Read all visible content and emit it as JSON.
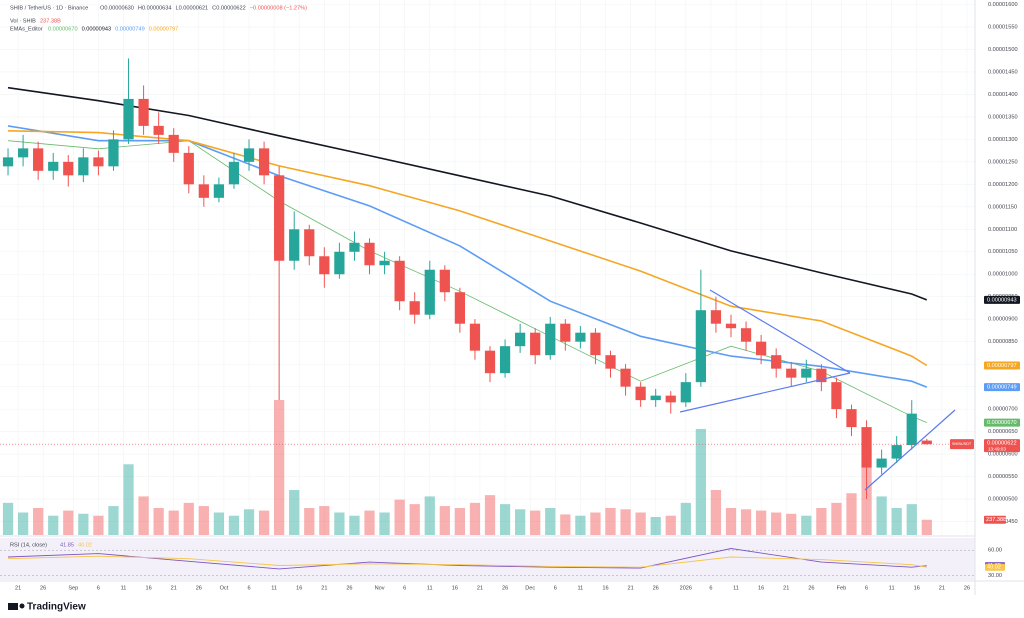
{
  "brand": "TradingView",
  "chart_data": {
    "type": "candlestick",
    "title": "SHIB / TetherUS · 1D · Binance",
    "ohlc_legend": [
      "O0.00000630",
      "H0.00000634",
      "L0.00000621",
      "C0.00000622",
      "−0.00000008 (−1.27%)"
    ],
    "up_color": "#26a69a",
    "down_color": "#ef5350",
    "x": [
      0,
      3,
      6,
      9,
      12,
      15,
      18,
      21,
      24,
      27,
      30,
      33,
      36,
      39,
      42,
      45,
      48,
      51,
      54,
      57,
      60,
      63,
      66,
      69,
      72,
      75,
      78,
      81,
      84,
      87,
      90,
      93,
      96,
      99,
      102,
      105,
      108,
      111,
      114,
      117,
      120,
      123,
      126,
      129,
      132,
      135,
      138,
      141,
      144,
      147,
      150,
      153,
      156,
      159,
      162,
      165,
      168,
      171,
      174,
      177,
      180,
      183
    ],
    "candles": [
      [
        1.24e-05,
        1.28e-05,
        1.22e-05,
        1.26e-05
      ],
      [
        1.26e-05,
        1.31e-05,
        1.24e-05,
        1.28e-05
      ],
      [
        1.28e-05,
        1.295e-05,
        1.21e-05,
        1.23e-05
      ],
      [
        1.23e-05,
        1.27e-05,
        1.21e-05,
        1.25e-05
      ],
      [
        1.25e-05,
        1.265e-05,
        1.195e-05,
        1.22e-05
      ],
      [
        1.22e-05,
        1.28e-05,
        1.205e-05,
        1.26e-05
      ],
      [
        1.26e-05,
        1.275e-05,
        1.22e-05,
        1.24e-05
      ],
      [
        1.24e-05,
        1.32e-05,
        1.23e-05,
        1.3e-05
      ],
      [
        1.3e-05,
        1.48e-05,
        1.29e-05,
        1.39e-05
      ],
      [
        1.39e-05,
        1.42e-05,
        1.31e-05,
        1.33e-05
      ],
      [
        1.33e-05,
        1.36e-05,
        1.29e-05,
        1.31e-05
      ],
      [
        1.31e-05,
        1.325e-05,
        1.25e-05,
        1.27e-05
      ],
      [
        1.27e-05,
        1.285e-05,
        1.18e-05,
        1.2e-05
      ],
      [
        1.2e-05,
        1.22e-05,
        1.15e-05,
        1.17e-05
      ],
      [
        1.17e-05,
        1.215e-05,
        1.16e-05,
        1.2e-05
      ],
      [
        1.2e-05,
        1.27e-05,
        1.19e-05,
        1.25e-05
      ],
      [
        1.25e-05,
        1.3e-05,
        1.23e-05,
        1.28e-05
      ],
      [
        1.28e-05,
        1.295e-05,
        1.2e-05,
        1.22e-05
      ],
      [
        1.22e-05,
        1.24e-05,
        7.2e-06,
        1.03e-05
      ],
      [
        1.03e-05,
        1.14e-05,
        1.01e-05,
        1.1e-05
      ],
      [
        1.1e-05,
        1.11e-05,
        1.02e-05,
        1.04e-05
      ],
      [
        1.04e-05,
        1.06e-05,
        9.7e-06,
        1e-05
      ],
      [
        1e-05,
        1.07e-05,
        9.9e-06,
        1.05e-05
      ],
      [
        1.05e-05,
        1.095e-05,
        1.03e-05,
        1.07e-05
      ],
      [
        1.07e-05,
        1.08e-05,
        1e-05,
        1.02e-05
      ],
      [
        1.02e-05,
        1.05e-05,
        1e-05,
        1.03e-05
      ],
      [
        1.03e-05,
        1.04e-05,
        9.2e-06,
        9.4e-06
      ],
      [
        9.4e-06,
        9.6e-06,
        8.9e-06,
        9.1e-06
      ],
      [
        9.1e-06,
        1.03e-05,
        9e-06,
        1.01e-05
      ],
      [
        1.01e-05,
        1.02e-05,
        9.4e-06,
        9.6e-06
      ],
      [
        9.6e-06,
        9.7e-06,
        8.7e-06,
        8.9e-06
      ],
      [
        8.9e-06,
        9e-06,
        8.1e-06,
        8.3e-06
      ],
      [
        8.3e-06,
        8.4e-06,
        7.6e-06,
        7.8e-06
      ],
      [
        7.8e-06,
        8.55e-06,
        7.7e-06,
        8.4e-06
      ],
      [
        8.4e-06,
        8.9e-06,
        8.25e-06,
        8.7e-06
      ],
      [
        8.7e-06,
        8.8e-06,
        8e-06,
        8.2e-06
      ],
      [
        8.2e-06,
        9.05e-06,
        8.1e-06,
        8.9e-06
      ],
      [
        8.9e-06,
        9e-06,
        8.3e-06,
        8.5e-06
      ],
      [
        8.5e-06,
        8.85e-06,
        8.35e-06,
        8.7e-06
      ],
      [
        8.7e-06,
        8.8e-06,
        8e-06,
        8.2e-06
      ],
      [
        8.2e-06,
        8.3e-06,
        7.7e-06,
        7.9e-06
      ],
      [
        7.9e-06,
        8e-06,
        7.3e-06,
        7.5e-06
      ],
      [
        7.5e-06,
        7.6e-06,
        7.05e-06,
        7.2e-06
      ],
      [
        7.2e-06,
        7.45e-06,
        7.05e-06,
        7.3e-06
      ],
      [
        7.3e-06,
        7.4e-06,
        6.9e-06,
        7.15e-06
      ],
      [
        7.15e-06,
        7.8e-06,
        7.05e-06,
        7.6e-06
      ],
      [
        7.6e-06,
        1.01e-05,
        7.5e-06,
        9.2e-06
      ],
      [
        9.2e-06,
        9.5e-06,
        8.7e-06,
        8.9e-06
      ],
      [
        8.9e-06,
        9.1e-06,
        8.6e-06,
        8.8e-06
      ],
      [
        8.8e-06,
        8.95e-06,
        8.3e-06,
        8.5e-06
      ],
      [
        8.5e-06,
        8.65e-06,
        8e-06,
        8.2e-06
      ],
      [
        8.2e-06,
        8.35e-06,
        7.7e-06,
        7.9e-06
      ],
      [
        7.9e-06,
        8.05e-06,
        7.5e-06,
        7.7e-06
      ],
      [
        7.7e-06,
        8.1e-06,
        7.6e-06,
        7.9e-06
      ],
      [
        7.9e-06,
        8e-06,
        7.4e-06,
        7.6e-06
      ],
      [
        7.6e-06,
        7.7e-06,
        6.8e-06,
        7e-06
      ],
      [
        7e-06,
        7.1e-06,
        6.4e-06,
        6.6e-06
      ],
      [
        6.6e-06,
        6.75e-06,
        5e-06,
        5.7e-06
      ],
      [
        5.7e-06,
        6.1e-06,
        5.55e-06,
        5.9e-06
      ],
      [
        5.9e-06,
        6.4e-06,
        5.8e-06,
        6.2e-06
      ],
      [
        6.2e-06,
        7.2e-06,
        6.1e-06,
        6.9e-06
      ],
      [
        6.3e-06,
        6.34e-06,
        6.21e-06,
        6.22e-06
      ]
    ],
    "xlim": [
      -1.6,
      192.6
    ],
    "xticks": [
      {
        "value": 2,
        "label": "21"
      },
      {
        "value": 7,
        "label": "26"
      },
      {
        "value": 13,
        "label": "Sep"
      },
      {
        "value": 18,
        "label": "6"
      },
      {
        "value": 23,
        "label": "11"
      },
      {
        "value": 28,
        "label": "16"
      },
      {
        "value": 33,
        "label": "21"
      },
      {
        "value": 38,
        "label": "26"
      },
      {
        "value": 43,
        "label": "Oct"
      },
      {
        "value": 48,
        "label": "6"
      },
      {
        "value": 53,
        "label": "11"
      },
      {
        "value": 58,
        "label": "16"
      },
      {
        "value": 63,
        "label": "21"
      },
      {
        "value": 68,
        "label": "26"
      },
      {
        "value": 74,
        "label": "Nov"
      },
      {
        "value": 79,
        "label": "6"
      },
      {
        "value": 84,
        "label": "11"
      },
      {
        "value": 89,
        "label": "16"
      },
      {
        "value": 94,
        "label": "21"
      },
      {
        "value": 99,
        "label": "26"
      },
      {
        "value": 104,
        "label": "Dec"
      },
      {
        "value": 109,
        "label": "6"
      },
      {
        "value": 114,
        "label": "11"
      },
      {
        "value": 119,
        "label": "16"
      },
      {
        "value": 124,
        "label": "21"
      },
      {
        "value": 129,
        "label": "26"
      },
      {
        "value": 135,
        "label": "2026"
      },
      {
        "value": 140,
        "label": "6"
      },
      {
        "value": 145,
        "label": "11"
      },
      {
        "value": 150,
        "label": "16"
      },
      {
        "value": 155,
        "label": "21"
      },
      {
        "value": 160,
        "label": "26"
      },
      {
        "value": 166,
        "label": "Feb"
      },
      {
        "value": 171,
        "label": "6"
      },
      {
        "value": 176,
        "label": "11"
      },
      {
        "value": 181,
        "label": "16"
      },
      {
        "value": 186,
        "label": "21"
      },
      {
        "value": 191,
        "label": "26"
      }
    ],
    "ylim": [
      4.2e-06,
      1.61e-05
    ],
    "yticks": [
      {
        "value": 1.6e-05,
        "label": "0.00001600"
      },
      {
        "value": 1.55e-05,
        "label": "0.00001550"
      },
      {
        "value": 1.5e-05,
        "label": "0.00001500"
      },
      {
        "value": 1.45e-05,
        "label": "0.00001450"
      },
      {
        "value": 1.4e-05,
        "label": "0.00001400"
      },
      {
        "value": 1.35e-05,
        "label": "0.00001350"
      },
      {
        "value": 1.3e-05,
        "label": "0.00001300"
      },
      {
        "value": 1.25e-05,
        "label": "0.00001250"
      },
      {
        "value": 1.2e-05,
        "label": "0.00001200"
      },
      {
        "value": 1.15e-05,
        "label": "0.00001150"
      },
      {
        "value": 1.1e-05,
        "label": "0.00001100"
      },
      {
        "value": 1.05e-05,
        "label": "0.00001050"
      },
      {
        "value": 1e-05,
        "label": "0.00001000"
      },
      {
        "value": 9.5e-06,
        "label": "0.00000950"
      },
      {
        "value": 9e-06,
        "label": "0.00000900"
      },
      {
        "value": 8.5e-06,
        "label": "0.00000850"
      },
      {
        "value": 8e-06,
        "label": "0.00000800"
      },
      {
        "value": 7.5e-06,
        "label": "0.00000750"
      },
      {
        "value": 7e-06,
        "label": "0.00000700"
      },
      {
        "value": 6.5e-06,
        "label": "0.00000650"
      },
      {
        "value": 6e-06,
        "label": "0.00000600"
      },
      {
        "value": 5.5e-06,
        "label": "0.00000550"
      },
      {
        "value": 5e-06,
        "label": "0.00000500"
      },
      {
        "value": 4.5e-06,
        "label": "0.00000450"
      }
    ],
    "last_price": {
      "symbol": "SHIBUSDT",
      "label": "0.00000622",
      "countdown": "13:49:03"
    },
    "volume": {
      "title": "Vol · SHIB",
      "last_label": "237.38B",
      "values": [
        500,
        350,
        420,
        300,
        380,
        330,
        300,
        450,
        1100,
        600,
        420,
        380,
        500,
        450,
        350,
        300,
        400,
        380,
        2100,
        700,
        420,
        450,
        350,
        300,
        380,
        350,
        550,
        480,
        600,
        450,
        420,
        500,
        620,
        480,
        400,
        380,
        420,
        320,
        300,
        350,
        420,
        400,
        350,
        280,
        300,
        500,
        1650,
        700,
        420,
        400,
        380,
        350,
        330,
        300,
        420,
        500,
        650,
        1050,
        600,
        420,
        480,
        237.38
      ]
    },
    "ema": {
      "title": "EMAs_Editor",
      "x": [
        0,
        18,
        36,
        54,
        72,
        90,
        108,
        126,
        144,
        162,
        180,
        183
      ],
      "series": [
        {
          "color": "#66bb6a",
          "value_label": "0.00000670",
          "values": [
            1.297e-05,
            1.279e-05,
            1.297e-05,
            1.163e-05,
            1.052e-05,
            9.62e-06,
            8.62e-06,
            7.62e-06,
            8.4e-06,
            7.84e-06,
            6.84e-06,
            6.7e-06
          ]
        },
        {
          "color": "#131722",
          "value_label": "0.00000943",
          "values": [
            1.415e-05,
            1.386e-05,
            1.353e-05,
            1.308e-05,
            1.264e-05,
            1.219e-05,
            1.174e-05,
            1.114e-05,
            1.052e-05,
            1.003e-05,
            9.56e-06,
            9.43e-06
          ]
        },
        {
          "color": "#5b9cf6",
          "value_label": "0.00000749",
          "values": [
            1.33e-05,
            1.297e-05,
            1.297e-05,
            1.219e-05,
            1.152e-05,
            1.063e-05,
            9.4e-06,
            8.62e-06,
            8.18e-06,
            7.95e-06,
            7.62e-06,
            7.49e-06
          ]
        },
        {
          "color": "#f5a623",
          "value_label": "0.00000797",
          "values": [
            1.319e-05,
            1.315e-05,
            1.297e-05,
            1.241e-05,
            1.197e-05,
            1.141e-05,
            1.074e-05,
            1.007e-05,
            9.29e-06,
            8.96e-06,
            8.18e-06,
            7.97e-06
          ]
        }
      ]
    },
    "rsi": {
      "title": "RSI (14, close)",
      "ylim": [
        25,
        72
      ],
      "yticks": [
        {
          "value": 60,
          "label": "60.00"
        },
        {
          "value": 30,
          "label": "30.00"
        }
      ],
      "x": [
        0,
        18,
        36,
        54,
        72,
        90,
        108,
        126,
        144,
        162,
        180,
        183
      ],
      "series": [
        {
          "color": "#7e57c2",
          "value_label": "41.85",
          "values": [
            52,
            56,
            47,
            38,
            46,
            42,
            40,
            39,
            62,
            46,
            40,
            41.85
          ]
        },
        {
          "color": "#f7c548",
          "value_label": "40.02",
          "values": [
            50,
            53,
            50,
            42,
            44,
            43,
            41,
            40,
            52,
            49,
            43,
            40.02
          ]
        }
      ]
    }
  }
}
